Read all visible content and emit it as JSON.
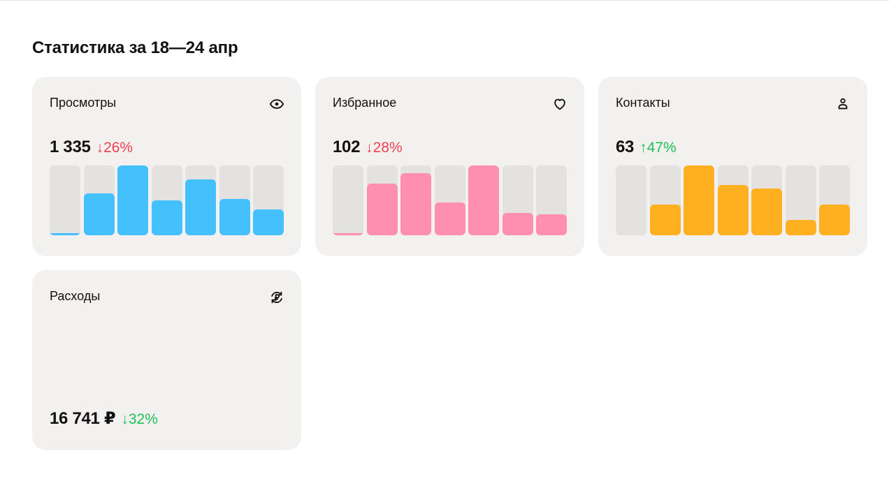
{
  "page": {
    "title": "Статистика за 18—24 апр"
  },
  "cards": {
    "views": {
      "title": "Просмотры",
      "icon": "eye-icon",
      "value": "1 335",
      "change": "↓26%",
      "change_direction": "down",
      "color": "#44c1fd",
      "bars": [
        0.03,
        0.6,
        1.0,
        0.5,
        0.8,
        0.52,
        0.37
      ]
    },
    "favorites": {
      "title": "Избранное",
      "icon": "heart-icon",
      "value": "102",
      "change": "↓28%",
      "change_direction": "down",
      "color": "#ff8fb2",
      "bars": [
        0.03,
        0.74,
        0.89,
        0.47,
        1.0,
        0.32,
        0.3
      ]
    },
    "contacts": {
      "title": "Контакты",
      "icon": "user-icon",
      "value": "63",
      "change": "↑47%",
      "change_direction": "up",
      "color": "#ffb020",
      "bars": [
        0.0,
        0.44,
        1.0,
        0.72,
        0.67,
        0.22,
        0.44
      ]
    },
    "expenses": {
      "title": "Расходы",
      "icon": "ruble-refresh-icon",
      "value": "16 741 ₽",
      "change": "↓32%",
      "change_direction": "down",
      "change_color": "#1fbf56"
    }
  }
}
